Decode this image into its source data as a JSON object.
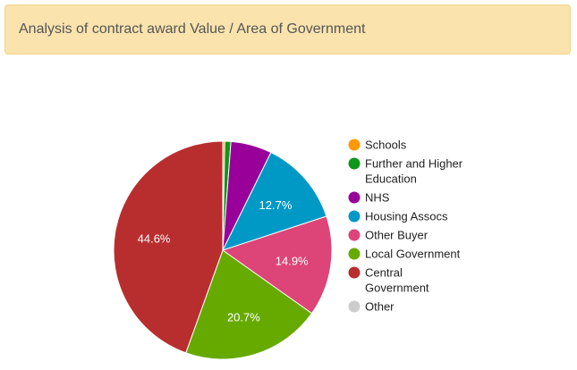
{
  "panel": {
    "title": "Analysis of contract award Value / Area of Government"
  },
  "chart_data": {
    "type": "pie",
    "title": "",
    "legend_position": "right",
    "slices": [
      {
        "label": "Schools",
        "value": 0.3,
        "color": "#ff9900",
        "data_label": ""
      },
      {
        "label": "Further and Higher Education",
        "value": 0.9,
        "color": "#109618",
        "data_label": ""
      },
      {
        "label": "NHS",
        "value": 6.1,
        "color": "#990099",
        "data_label": ""
      },
      {
        "label": "Housing Assocs",
        "value": 12.7,
        "color": "#0099c6",
        "data_label": "12.7%"
      },
      {
        "label": "Other Buyer",
        "value": 14.9,
        "color": "#dd4477",
        "data_label": "14.9%"
      },
      {
        "label": "Local Government",
        "value": 20.7,
        "color": "#66aa00",
        "data_label": "20.7%"
      },
      {
        "label": "Central Government",
        "value": 44.6,
        "color": "#b82e2e",
        "data_label": "44.6%"
      },
      {
        "label": "Other",
        "value": 0,
        "color": "#cccccc",
        "data_label": ""
      }
    ]
  }
}
